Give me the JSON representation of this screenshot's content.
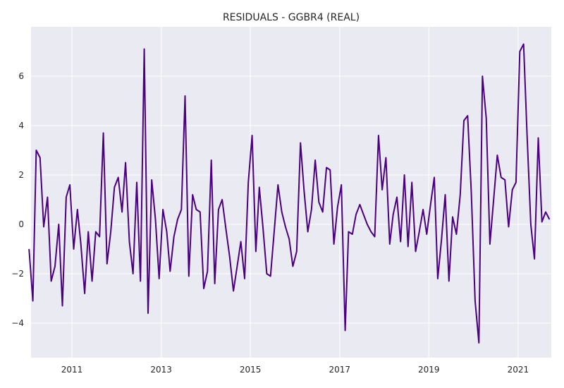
{
  "chart_data": {
    "type": "line",
    "title": "RESIDUALS - GGBR4 (REAL)",
    "xlabel": "",
    "ylabel": "",
    "x_axis_type": "date",
    "xlim": [
      "2010-01-31",
      "2021-09-30"
    ],
    "ylim": [
      -5.4,
      8.0
    ],
    "grid": true,
    "x_ticks": [
      {
        "value": "2011-01-01",
        "label": "2011"
      },
      {
        "value": "2013-01-01",
        "label": "2013"
      },
      {
        "value": "2015-01-01",
        "label": "2015"
      },
      {
        "value": "2017-01-01",
        "label": "2017"
      },
      {
        "value": "2019-01-01",
        "label": "2019"
      },
      {
        "value": "2021-01-01",
        "label": "2021"
      }
    ],
    "y_ticks": [
      {
        "value": -4,
        "label": "−4"
      },
      {
        "value": -2,
        "label": "−2"
      },
      {
        "value": 0,
        "label": "0"
      },
      {
        "value": 2,
        "label": "2"
      },
      {
        "value": 4,
        "label": "4"
      },
      {
        "value": 6,
        "label": "6"
      }
    ],
    "colors": {
      "line": "#4b0082",
      "plot_bg": "#eaeaf2",
      "grid": "#ffffff"
    },
    "series": [
      {
        "x_start": "2010-01",
        "frequency": "monthly",
        "values": [
          -1.0,
          -3.1,
          3.0,
          2.7,
          -0.1,
          1.1,
          -2.3,
          -1.7,
          0.0,
          -3.3,
          1.1,
          1.6,
          -1.0,
          0.6,
          -0.8,
          -2.8,
          -0.3,
          -2.3,
          -0.3,
          -0.5,
          3.7,
          -1.6,
          -0.3,
          1.5,
          1.9,
          0.5,
          2.5,
          -0.7,
          -2.0,
          1.7,
          -2.3,
          7.1,
          -3.6,
          1.8,
          0.2,
          -2.2,
          0.6,
          -0.3,
          -1.9,
          -0.5,
          0.2,
          0.6,
          5.2,
          -2.1,
          1.2,
          0.6,
          0.5,
          -2.6,
          -1.9,
          2.6,
          -2.4,
          0.6,
          1.0,
          -0.2,
          -1.3,
          -2.7,
          -1.7,
          -0.7,
          -2.2,
          1.7,
          3.6,
          -1.1,
          1.5,
          -0.2,
          -2.0,
          -2.1,
          -0.3,
          1.6,
          0.5,
          -0.1,
          -0.6,
          -1.7,
          -1.1,
          3.3,
          1.4,
          -0.3,
          0.6,
          2.6,
          0.9,
          0.5,
          2.3,
          2.2,
          -0.8,
          0.7,
          1.6,
          -4.3,
          -0.3,
          -0.4,
          0.4,
          0.8,
          0.4,
          0.0,
          -0.3,
          -0.5,
          3.6,
          1.4,
          2.7,
          -0.8,
          0.4,
          1.1,
          -0.7,
          2.0,
          -0.9,
          1.7,
          -1.1,
          -0.3,
          0.6,
          -0.4,
          0.8,
          1.9,
          -2.2,
          -0.6,
          1.2,
          -2.3,
          0.3,
          -0.4,
          1.2,
          4.2,
          4.4,
          1.3,
          -3.1,
          -4.8,
          6.0,
          4.3,
          -0.8,
          1.0,
          2.8,
          1.9,
          1.8,
          -0.1,
          1.4,
          1.7,
          7.0,
          7.3,
          3.7,
          0.0,
          -1.4,
          3.5,
          0.1,
          0.5,
          0.2
        ]
      }
    ]
  }
}
